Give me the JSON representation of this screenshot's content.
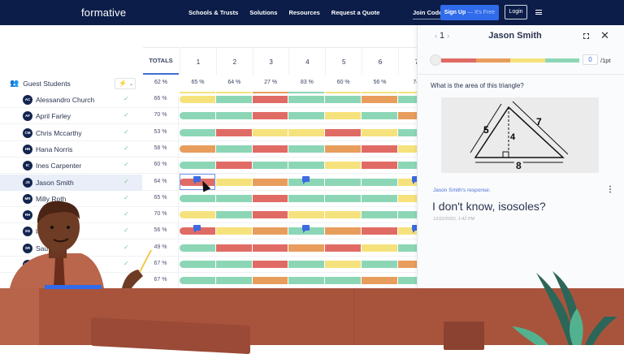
{
  "nav": {
    "logo": "formative",
    "links": [
      "Schools & Trusts",
      "Solutions",
      "Resources",
      "Request a Quote"
    ],
    "join_code": "Join Code",
    "sign_up": "Sign Up",
    "sign_up_suffix": "— It's Free",
    "login": "Login",
    "menu_icon": "hamburger-icon"
  },
  "grid": {
    "totals_label": "TOTALS",
    "columns": [
      "1",
      "2",
      "3",
      "4",
      "5",
      "6",
      "7"
    ],
    "group": {
      "label": "Guest Students",
      "total": "62 %",
      "col_pcts": [
        "65 %",
        "64 %",
        "27 %",
        "83 %",
        "60 %",
        "56 %",
        "74"
      ],
      "col_colors": [
        "Y",
        "Y",
        "O",
        "G",
        "Y",
        "Y",
        "Y"
      ]
    },
    "colors": {
      "G": "#8cd6b6",
      "R": "#e06b65",
      "Y": "#f6e27c",
      "O": "#e89d5d",
      "accent": "#3d6ae0"
    },
    "rows": [
      {
        "initials": "AC",
        "name": "Alessandro Church",
        "total": "66 %",
        "cells": [
          "Y",
          "G",
          "R",
          "G",
          "G",
          "O",
          "G"
        ]
      },
      {
        "initials": "AF",
        "name": "April Farley",
        "total": "70 %",
        "cells": [
          "G",
          "G",
          "R",
          "G",
          "Y",
          "G",
          "O"
        ]
      },
      {
        "initials": "CM",
        "name": "Chris Mccarthy",
        "total": "53 %",
        "cells": [
          "G",
          "R",
          "Y",
          "Y",
          "R",
          "Y",
          "G"
        ]
      },
      {
        "initials": "HN",
        "name": "Hana Norris",
        "total": "58 %",
        "cells": [
          "O",
          "G",
          "R",
          "G",
          "O",
          "R",
          "Y"
        ]
      },
      {
        "initials": "IC",
        "name": "Ines Carpenter",
        "total": "60 %",
        "cells": [
          "G",
          "R",
          "G",
          "G",
          "Y",
          "R",
          "G"
        ]
      },
      {
        "initials": "JS",
        "name": "Jason Smith",
        "total": "64 %",
        "cells": [
          "R",
          "Y",
          "O",
          "G",
          "G",
          "G",
          "Y"
        ],
        "flags": [
          0,
          3,
          6
        ],
        "selected": true
      },
      {
        "initials": "MR",
        "name": "Milly Roth",
        "total": "65 %",
        "cells": [
          "G",
          "G",
          "R",
          "G",
          "G",
          "G",
          "Y"
        ]
      },
      {
        "initials": "RH",
        "name": "",
        "total": "70 %",
        "cells": [
          "Y",
          "G",
          "R",
          "Y",
          "Y",
          "G",
          "G"
        ]
      },
      {
        "initials": "SG",
        "name": "les",
        "total": "56 %",
        "cells": [
          "R",
          "Y",
          "O",
          "G",
          "O",
          "R",
          "Y"
        ],
        "flags": [
          0,
          3,
          6
        ]
      },
      {
        "initials": "SR",
        "name": "Sau h",
        "total": "49 %",
        "cells": [
          "G",
          "R",
          "R",
          "O",
          "R",
          "Y",
          "G"
        ]
      },
      {
        "initials": "WB",
        "name": "",
        "total": "67 %",
        "cells": [
          "G",
          "G",
          "R",
          "G",
          "Y",
          "G",
          "O"
        ]
      },
      {
        "initials": "",
        "name": "",
        "total": "67 %",
        "cells": [
          "G",
          "G",
          "O",
          "G",
          "G",
          "O",
          "G"
        ]
      }
    ]
  },
  "panel": {
    "question_number": "1",
    "student_name": "Jason Smith",
    "score": "0",
    "points_label": "/1pt",
    "score_scale_colors": [
      "#e06b65",
      "#e89d5d",
      "#f6e27c",
      "#8cd6b6"
    ],
    "question": "What is the area of this triangle?",
    "figure_labels": {
      "side_left": "5",
      "side_right": "7",
      "height": "4",
      "base": "8"
    },
    "response_label": "Jason Smith's response:",
    "response": "I don't know, isosoles?",
    "timestamp": "12/22/2022, 1:42 PM"
  }
}
